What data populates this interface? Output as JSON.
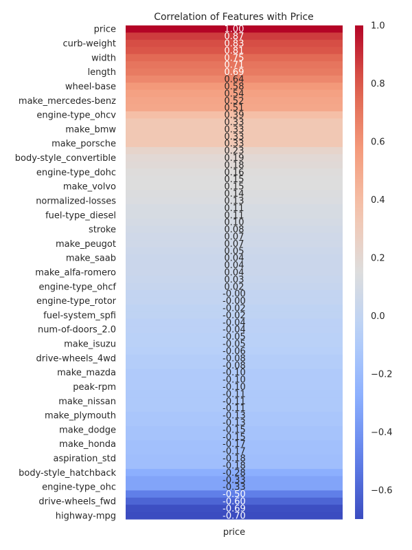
{
  "chart_data": {
    "type": "heatmap",
    "title": "Correlation of Features with Price",
    "x_categories": [
      "price"
    ],
    "colormap": "coolwarm",
    "value_range": [
      -0.7,
      1.0
    ],
    "annotation_format": "0.00",
    "colorbar_ticks": [
      {
        "value": 1.0,
        "label": "1.0"
      },
      {
        "value": 0.8,
        "label": "0.8"
      },
      {
        "value": 0.6,
        "label": "0.6"
      },
      {
        "value": 0.4,
        "label": "0.4"
      },
      {
        "value": 0.2,
        "label": "0.2"
      },
      {
        "value": 0.0,
        "label": "0.0"
      },
      {
        "value": -0.2,
        "label": "−0.2"
      },
      {
        "value": -0.4,
        "label": "−0.4"
      },
      {
        "value": -0.6,
        "label": "−0.6"
      }
    ],
    "rows": [
      {
        "label": "price",
        "value": 1.0
      },
      {
        "label": "",
        "value": 0.87
      },
      {
        "label": "curb-weight",
        "value": 0.83
      },
      {
        "label": "",
        "value": 0.81
      },
      {
        "label": "width",
        "value": 0.75
      },
      {
        "label": "",
        "value": 0.71
      },
      {
        "label": "length",
        "value": 0.69
      },
      {
        "label": "",
        "value": 0.64
      },
      {
        "label": "wheel-base",
        "value": 0.58
      },
      {
        "label": "",
        "value": 0.54
      },
      {
        "label": "make_mercedes-benz",
        "value": 0.52
      },
      {
        "label": "",
        "value": 0.51
      },
      {
        "label": "engine-type_ohcv",
        "value": 0.39
      },
      {
        "label": "",
        "value": 0.33
      },
      {
        "label": "make_bmw",
        "value": 0.33
      },
      {
        "label": "",
        "value": 0.33
      },
      {
        "label": "make_porsche",
        "value": 0.33
      },
      {
        "label": "",
        "value": 0.23
      },
      {
        "label": "body-style_convertible",
        "value": 0.19
      },
      {
        "label": "",
        "value": 0.18
      },
      {
        "label": "engine-type_dohc",
        "value": 0.16
      },
      {
        "label": "",
        "value": 0.15
      },
      {
        "label": "make_volvo",
        "value": 0.15
      },
      {
        "label": "",
        "value": 0.14
      },
      {
        "label": "normalized-losses",
        "value": 0.13
      },
      {
        "label": "",
        "value": 0.11
      },
      {
        "label": "fuel-type_diesel",
        "value": 0.11
      },
      {
        "label": "",
        "value": 0.1
      },
      {
        "label": "stroke",
        "value": 0.08
      },
      {
        "label": "",
        "value": 0.07
      },
      {
        "label": "make_peugot",
        "value": 0.07
      },
      {
        "label": "",
        "value": 0.05
      },
      {
        "label": "make_saab",
        "value": 0.04
      },
      {
        "label": "",
        "value": 0.04
      },
      {
        "label": "make_alfa-romero",
        "value": 0.04
      },
      {
        "label": "",
        "value": 0.03
      },
      {
        "label": "engine-type_ohcf",
        "value": 0.02
      },
      {
        "label": "",
        "value": -0.0
      },
      {
        "label": "engine-type_rotor",
        "value": -0.0
      },
      {
        "label": "",
        "value": -0.02
      },
      {
        "label": "fuel-system_spfi",
        "value": -0.02
      },
      {
        "label": "",
        "value": -0.04
      },
      {
        "label": "num-of-doors_2.0",
        "value": -0.04
      },
      {
        "label": "",
        "value": -0.05
      },
      {
        "label": "make_isuzu",
        "value": -0.05
      },
      {
        "label": "",
        "value": -0.06
      },
      {
        "label": "drive-wheels_4wd",
        "value": -0.08
      },
      {
        "label": "",
        "value": -0.08
      },
      {
        "label": "make_mazda",
        "value": -0.1
      },
      {
        "label": "",
        "value": -0.1
      },
      {
        "label": "peak-rpm",
        "value": -0.1
      },
      {
        "label": "",
        "value": -0.11
      },
      {
        "label": "make_nissan",
        "value": -0.11
      },
      {
        "label": "",
        "value": -0.11
      },
      {
        "label": "make_plymouth",
        "value": -0.13
      },
      {
        "label": "",
        "value": -0.13
      },
      {
        "label": "make_dodge",
        "value": -0.15
      },
      {
        "label": "",
        "value": -0.15
      },
      {
        "label": "make_honda",
        "value": -0.17
      },
      {
        "label": "",
        "value": -0.17
      },
      {
        "label": "aspiration_std",
        "value": -0.18
      },
      {
        "label": "",
        "value": -0.18
      },
      {
        "label": "body-style_hatchback",
        "value": -0.28
      },
      {
        "label": "",
        "value": -0.33
      },
      {
        "label": "engine-type_ohc",
        "value": -0.33
      },
      {
        "label": "",
        "value": -0.5
      },
      {
        "label": "drive-wheels_fwd",
        "value": -0.6
      },
      {
        "label": "",
        "value": -0.69
      },
      {
        "label": "highway-mpg",
        "value": -0.7
      }
    ]
  }
}
